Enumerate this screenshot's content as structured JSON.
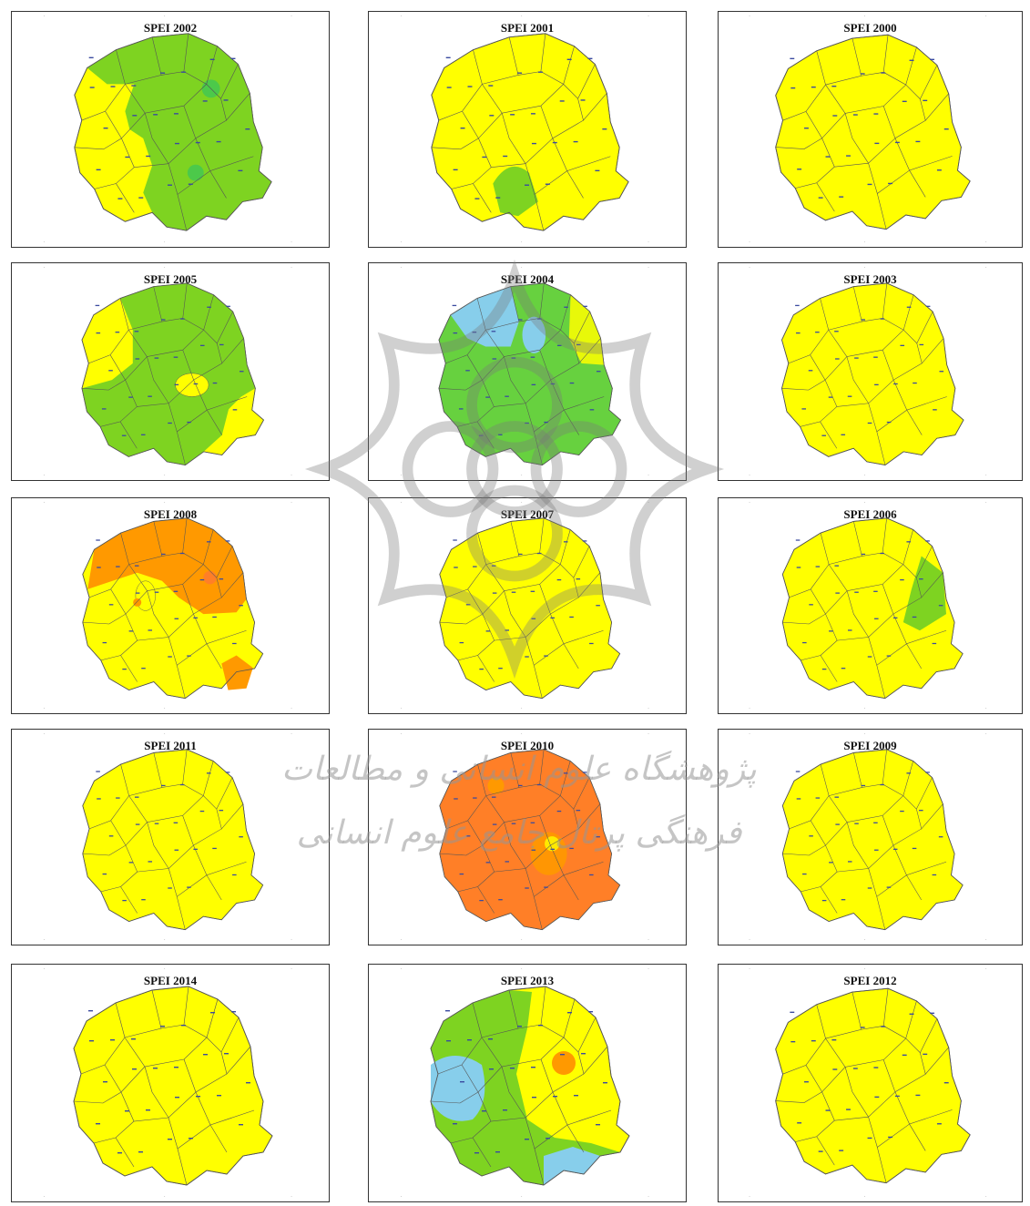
{
  "colors": {
    "yellow": "#ffff00",
    "green": "#7ed321",
    "dark_green": "#4cc94a",
    "light_blue": "#87ceeb",
    "orange": "#ff9900",
    "dark_orange": "#ff7f27",
    "outline": "#555555"
  },
  "panels": [
    {
      "title": "SPEI 2002",
      "pattern": "green-west-yellow"
    },
    {
      "title": "SPEI 2001",
      "pattern": "yellow-south-green"
    },
    {
      "title": "SPEI 2000",
      "pattern": "yellow"
    },
    {
      "title": "SPEI 2005",
      "pattern": "green-northwest-yellow"
    },
    {
      "title": "SPEI 2004",
      "pattern": "green-blue"
    },
    {
      "title": "SPEI 2003",
      "pattern": "yellow"
    },
    {
      "title": "SPEI 2008",
      "pattern": "orange-north"
    },
    {
      "title": "SPEI 2007",
      "pattern": "yellow"
    },
    {
      "title": "SPEI 2006",
      "pattern": "yellow-east-green"
    },
    {
      "title": "SPEI 2011",
      "pattern": "yellow"
    },
    {
      "title": "SPEI 2010",
      "pattern": "orange"
    },
    {
      "title": "SPEI 2009",
      "pattern": "yellow"
    },
    {
      "title": "SPEI 2014",
      "pattern": "yellow"
    },
    {
      "title": "SPEI 2013",
      "pattern": "green-blue-west"
    },
    {
      "title": "SPEI 2012",
      "pattern": "yellow"
    }
  ],
  "watermark_text": "پژوهشگاه علوم انسانی و مطالعات فرهنگی پرتال جامع علوم انسانی"
}
